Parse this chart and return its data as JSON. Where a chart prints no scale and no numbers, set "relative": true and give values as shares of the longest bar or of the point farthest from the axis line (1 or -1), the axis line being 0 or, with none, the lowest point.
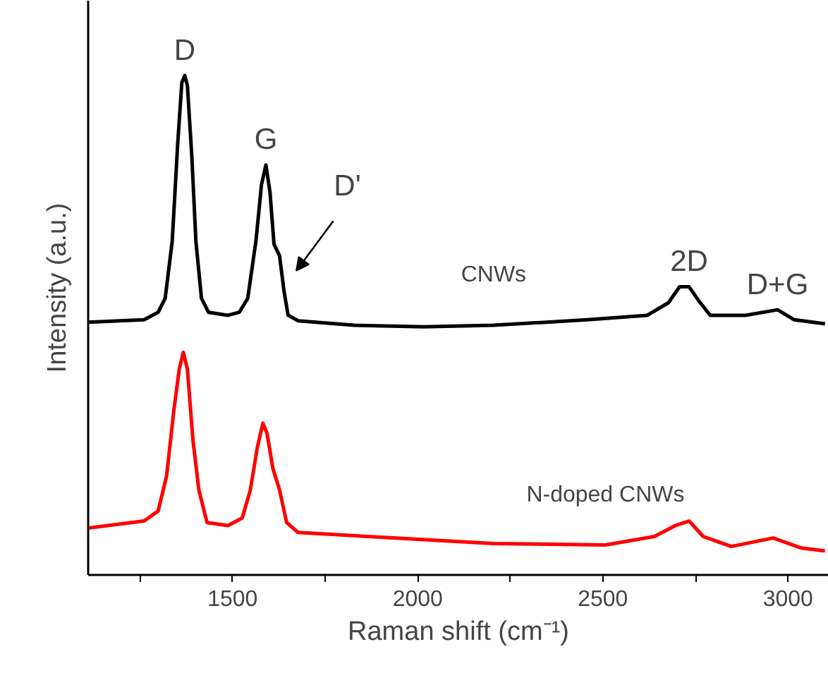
{
  "chart_data": {
    "type": "line",
    "relative": true,
    "xlabel": "Raman shift (cm⁻¹)",
    "ylabel": "Intensity (a.u.)",
    "xlim": [
      1110,
      3110
    ],
    "xticks": [
      {
        "value": 1250,
        "label": null
      },
      1500,
      {
        "value": 1750,
        "label": null
      },
      2000,
      {
        "value": 2250,
        "label": null
      },
      2500,
      {
        "value": 2750,
        "label": null
      },
      3000
    ],
    "series": [
      {
        "color": "#000000",
        "x": [
          1110,
          1261,
          1299,
          1318,
          1337,
          1352,
          1363,
          1371,
          1378,
          1390,
          1401,
          1416,
          1435,
          1488,
          1518,
          1541,
          1563,
          1578,
          1590,
          1601,
          1612,
          1627,
          1639,
          1650,
          1677,
          1828,
          2017,
          2205,
          2458,
          2620,
          2677,
          2707,
          2733,
          2760,
          2790,
          2885,
          2972,
          3017,
          3100
        ],
        "values": [
          0.506,
          0.511,
          0.526,
          0.554,
          0.668,
          0.866,
          0.986,
          1.0,
          0.98,
          0.838,
          0.668,
          0.554,
          0.526,
          0.52,
          0.526,
          0.554,
          0.668,
          0.781,
          0.821,
          0.767,
          0.662,
          0.639,
          0.568,
          0.52,
          0.509,
          0.5,
          0.497,
          0.5,
          0.511,
          0.52,
          0.545,
          0.577,
          0.577,
          0.548,
          0.52,
          0.52,
          0.531,
          0.511,
          0.503
        ]
      },
      {
        "color": "#ff0000",
        "x": [
          1110,
          1261,
          1299,
          1322,
          1341,
          1356,
          1367,
          1378,
          1393,
          1409,
          1431,
          1488,
          1526,
          1548,
          1567,
          1582,
          1593,
          1609,
          1627,
          1646,
          1677,
          1866,
          2205,
          2507,
          2639,
          2696,
          2733,
          2771,
          2847,
          2960,
          3036,
          3100
        ],
        "values": [
          0.094,
          0.108,
          0.128,
          0.199,
          0.327,
          0.412,
          0.446,
          0.412,
          0.27,
          0.17,
          0.105,
          0.099,
          0.114,
          0.17,
          0.256,
          0.304,
          0.284,
          0.213,
          0.17,
          0.105,
          0.085,
          0.077,
          0.063,
          0.06,
          0.077,
          0.099,
          0.108,
          0.077,
          0.057,
          0.074,
          0.054,
          0.048
        ]
      }
    ],
    "annotations": [
      {
        "text": "D",
        "x": 1371,
        "y": 1.0
      },
      {
        "text": "G",
        "x": 1590,
        "y": 0.821
      },
      {
        "text": "D'",
        "x": 1627,
        "y": 0.639
      },
      {
        "text": "2D",
        "x": 2733,
        "y": 0.577
      },
      {
        "text": "D+G",
        "x": 2972,
        "y": 0.531
      },
      {
        "text": "CNWs",
        "x": 2205,
        "y": 0.5
      },
      {
        "text": "N-doped CNWs",
        "x": 2507,
        "y": 0.06
      }
    ]
  }
}
